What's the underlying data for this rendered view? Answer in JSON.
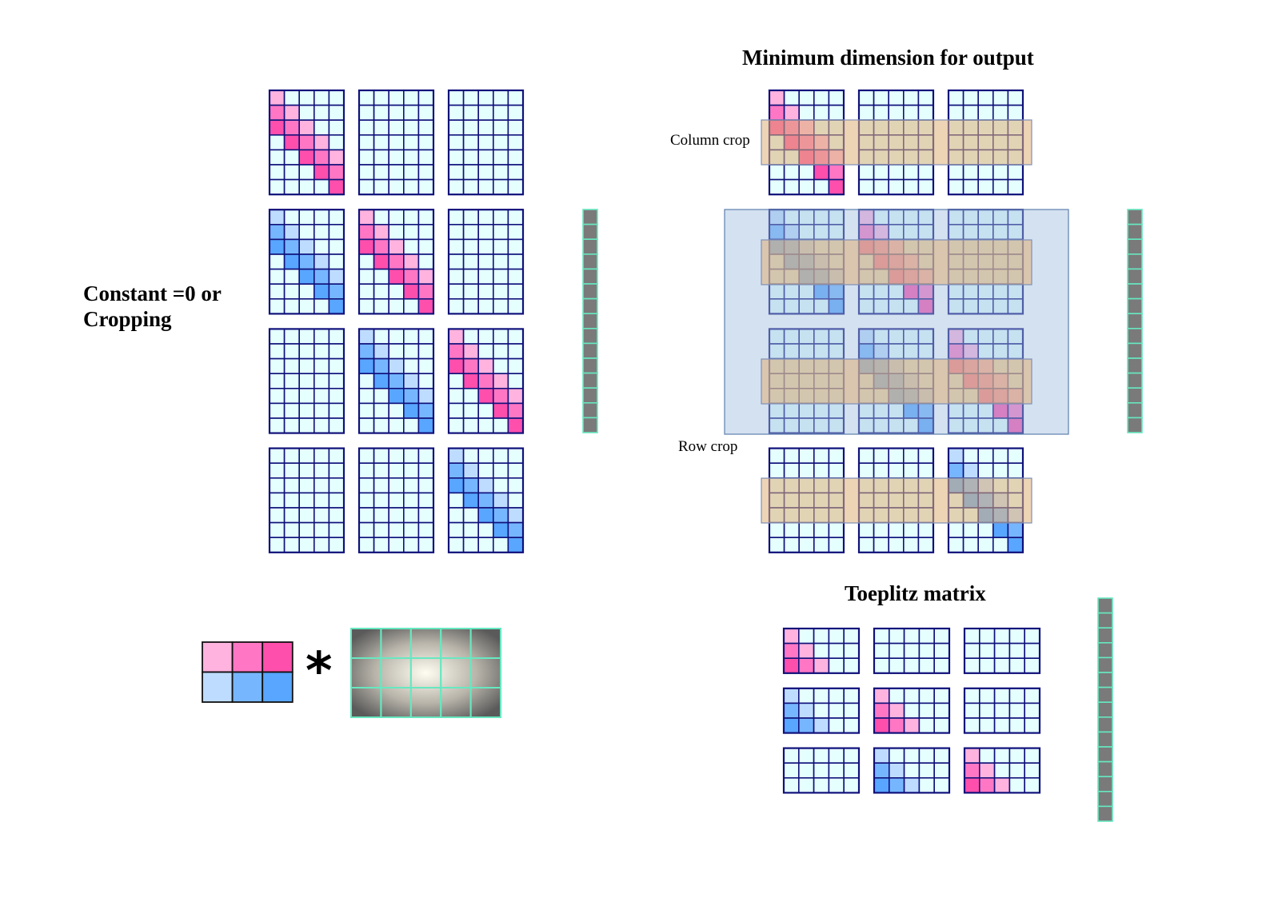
{
  "labels": {
    "left_title": "Constant =0 or",
    "left_title_line2": "Cropping",
    "top_right_title": "Minimum dimension for output",
    "column_crop": "Column crop",
    "row_crop": "Row crop",
    "toeplitz_title": "Toeplitz matrix",
    "convolution_symbol": "*"
  },
  "colors": {
    "empty_cell": "#e5ffff",
    "grid_line": "#10107a",
    "pink_light": "#ffb3de",
    "pink_mid": "#ff77c4",
    "pink_dark": "#ff4fac",
    "blue_light": "#bedcff",
    "blue_mid": "#76b6ff",
    "blue_dark": "#58a6ff",
    "vector_fill": "#7a7a7a",
    "vector_border": "#66e8c0",
    "crop_band": "rgba(222,177,120,0.55)",
    "output_region": "rgba(159,189,222,0.45)"
  },
  "kernel": {
    "rows": 2,
    "cols": 3,
    "values": [
      [
        "pink_light",
        "pink_mid",
        "pink_dark"
      ],
      [
        "blue_light",
        "blue_mid",
        "blue_dark"
      ]
    ]
  },
  "image": {
    "rows": 3,
    "cols": 5,
    "fill": "radial-gradient gray"
  },
  "padded_toeplitz": {
    "block_grid": [
      4,
      3
    ],
    "block_size": [
      7,
      5
    ],
    "blocks": [
      [
        "pink",
        "empty",
        "empty"
      ],
      [
        "blue",
        "pink",
        "empty"
      ],
      [
        "empty",
        "blue",
        "pink"
      ],
      [
        "empty",
        "empty",
        "blue"
      ]
    ],
    "vector_length": 15
  },
  "cropped_toeplitz": {
    "block_grid": [
      4,
      3
    ],
    "block_size": [
      7,
      5
    ],
    "blocks": [
      [
        "pink",
        "empty",
        "empty"
      ],
      [
        "blue",
        "pink",
        "empty"
      ],
      [
        "empty",
        "blue",
        "pink"
      ],
      [
        "empty",
        "empty",
        "blue"
      ]
    ],
    "vector_length": 15,
    "cropped_rows_per_block": [
      2,
      3,
      4
    ],
    "cropped_block_rows": [
      1,
      2
    ]
  },
  "final_toeplitz": {
    "block_grid": [
      3,
      3
    ],
    "block_size": [
      3,
      5
    ],
    "blocks": [
      [
        "pink",
        "empty",
        "empty"
      ],
      [
        "blue",
        "pink",
        "empty"
      ],
      [
        "empty",
        "blue",
        "pink"
      ]
    ],
    "vector_length": 15
  }
}
